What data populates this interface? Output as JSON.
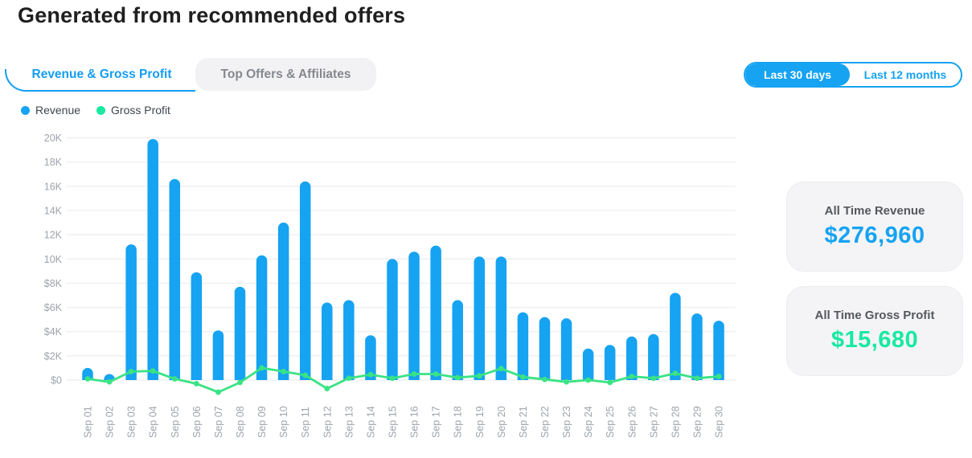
{
  "page": {
    "title": "Generated from recommended offers"
  },
  "tabs": [
    {
      "label": "Revenue & Gross Profit",
      "active": true
    },
    {
      "label": "Top Offers & Affiliates",
      "active": false
    }
  ],
  "range_toggle": [
    {
      "label": "Last 30 days",
      "active": true
    },
    {
      "label": "Last 12 months",
      "active": false
    }
  ],
  "legend": [
    {
      "label": "Revenue",
      "color": "#16a3f2"
    },
    {
      "label": "Gross Profit",
      "color": "#17e9a1"
    }
  ],
  "colors": {
    "accent_blue": "#16a3f2",
    "accent_green": "#17e9a1",
    "line_green": "#3ae384",
    "grid": "#efeff1",
    "axis_text": "#9da3ab"
  },
  "chart_data": {
    "type": "bar",
    "title": "Revenue & Gross Profit — Last 30 days",
    "categories": [
      "Sep 01",
      "Sep 02",
      "Sep 03",
      "Sep 04",
      "Sep 05",
      "Sep 06",
      "Sep 07",
      "Sep 08",
      "Sep 09",
      "Sep 10",
      "Sep 11",
      "Sep 12",
      "Sep 13",
      "Sep 14",
      "Sep 15",
      "Sep 16",
      "Sep 17",
      "Sep 18",
      "Sep 19",
      "Sep 20",
      "Sep 21",
      "Sep 22",
      "Sep 23",
      "Sep 24",
      "Sep 25",
      "Sep 26",
      "Sep 27",
      "Sep 28",
      "Sep 29",
      "Sep 30"
    ],
    "series": [
      {
        "name": "Revenue",
        "type": "bar",
        "color": "#16a3f2",
        "values": [
          1000,
          500,
          11200,
          19900,
          16600,
          8900,
          4100,
          7700,
          10300,
          13000,
          16400,
          6400,
          6600,
          3700,
          10000,
          10600,
          11100,
          6600,
          10200,
          10200,
          5600,
          5200,
          5100,
          2600,
          2900,
          3600,
          3800,
          7200,
          5500,
          4900
        ]
      },
      {
        "name": "Gross Profit",
        "type": "line",
        "color": "#3ae384",
        "values": [
          100,
          -150,
          700,
          750,
          100,
          -300,
          -1000,
          -200,
          1000,
          700,
          400,
          -700,
          150,
          450,
          150,
          500,
          500,
          200,
          350,
          950,
          250,
          50,
          -150,
          0,
          -200,
          300,
          150,
          550,
          150,
          300
        ]
      }
    ],
    "xlabel": "",
    "ylabel": "",
    "ylim": [
      0,
      20000
    ],
    "y_ticks": [
      "$0",
      "$2K",
      "$4K",
      "$6K",
      "$8K",
      "$10K",
      "$12K",
      "$14K",
      "$16K",
      "$18K",
      "$20K"
    ],
    "grid": true,
    "legend_position": "top-left"
  },
  "stat_cards": [
    {
      "label": "All Time Revenue",
      "value": "$276,960",
      "value_color": "#16a3f2"
    },
    {
      "label": "All Time Gross Profit",
      "value": "$15,680",
      "value_color": "#17e9a1"
    }
  ]
}
